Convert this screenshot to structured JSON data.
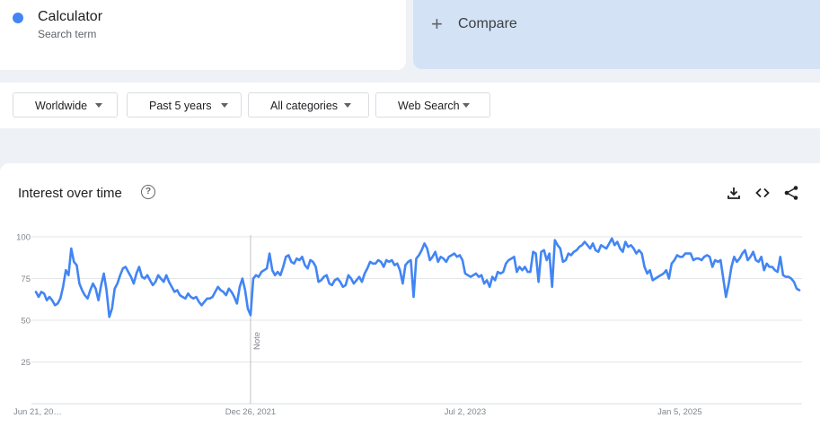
{
  "search_term": {
    "name": "Calculator",
    "subtitle": "Search term",
    "color": "#4285f4"
  },
  "compare": {
    "plus": "+",
    "label": "Compare"
  },
  "filters": [
    {
      "label": "Worldwide",
      "icon": "caret-down-icon"
    },
    {
      "label": "Past 5 years",
      "icon": "caret-down-icon"
    },
    {
      "label": "All categories",
      "icon": "caret-down-icon"
    },
    {
      "label": "Web Search",
      "icon": "caret-down-icon"
    }
  ],
  "interest_panel": {
    "title": "Interest over time",
    "help_icon": "help-circle-icon",
    "help_glyph": "?",
    "tools": [
      "download-icon",
      "embed-code-icon",
      "share-icon"
    ]
  },
  "chart_data": {
    "type": "line",
    "title": "Interest over time",
    "xlabel": "",
    "ylabel": "",
    "y_ticks": [
      25,
      50,
      75,
      100
    ],
    "ylim": [
      0,
      100
    ],
    "x_tick_labels": [
      "Jun 21, 20…",
      "Dec 26, 2021",
      "Jul 2, 2023",
      "Jan 5, 2025"
    ],
    "x_tick_weeks": [
      0,
      79,
      158,
      237
    ],
    "grid": true,
    "line_color": "#4285f4",
    "annotation": {
      "label": "Note",
      "week": 79
    },
    "series": [
      {
        "name": "Calculator",
        "values": [
          67,
          64,
          67,
          66,
          62,
          64,
          62,
          59,
          60,
          63,
          70,
          80,
          77,
          93,
          85,
          83,
          72,
          68,
          65,
          63,
          68,
          72,
          69,
          62,
          71,
          78,
          68,
          52,
          57,
          69,
          72,
          77,
          81,
          82,
          79,
          76,
          72,
          78,
          82,
          76,
          75,
          77,
          74,
          71,
          73,
          77,
          75,
          73,
          77,
          73,
          70,
          67,
          68,
          65,
          64,
          63,
          66,
          64,
          63,
          64,
          61,
          59,
          61,
          63,
          63,
          64,
          67,
          70,
          68,
          67,
          65,
          69,
          67,
          64,
          60,
          70,
          75,
          68,
          57,
          53,
          75,
          77,
          76,
          79,
          80,
          81,
          90,
          80,
          77,
          79,
          77,
          82,
          88,
          89,
          85,
          84,
          87,
          86,
          88,
          83,
          81,
          86,
          85,
          82,
          73,
          74,
          76,
          77,
          72,
          71,
          74,
          75,
          73,
          70,
          71,
          77,
          75,
          72,
          74,
          76,
          73,
          78,
          81,
          85,
          84,
          84,
          86,
          85,
          82,
          86,
          85,
          86,
          83,
          84,
          80,
          72,
          83,
          85,
          86,
          64,
          87,
          89,
          92,
          96,
          93,
          86,
          88,
          91,
          85,
          88,
          87,
          85,
          88,
          89,
          90,
          88,
          89,
          86,
          78,
          77,
          76,
          77,
          78,
          76,
          77,
          72,
          74,
          70,
          76,
          74,
          79,
          78,
          79,
          84,
          86,
          87,
          88,
          79,
          82,
          80,
          82,
          79,
          79,
          91,
          90,
          73,
          91,
          92,
          86,
          90,
          70,
          98,
          95,
          93,
          85,
          86,
          90,
          89,
          91,
          92,
          94,
          95,
          97,
          95,
          93,
          96,
          92,
          91,
          95,
          94,
          93,
          96,
          99,
          95,
          97,
          93,
          91,
          97,
          94,
          95,
          93,
          90,
          92,
          90,
          82,
          78,
          80,
          74,
          75,
          76,
          77,
          78,
          80,
          75,
          84,
          86,
          89,
          88,
          88,
          90,
          90,
          90,
          86,
          87,
          87,
          86,
          88,
          89,
          88,
          82,
          86,
          85,
          86,
          75,
          64,
          72,
          82,
          88,
          85,
          87,
          90,
          92,
          86,
          88,
          91,
          86,
          85,
          88,
          80,
          84,
          82,
          82,
          80,
          79,
          88,
          77,
          76,
          76,
          75,
          73,
          69,
          68
        ]
      }
    ]
  }
}
